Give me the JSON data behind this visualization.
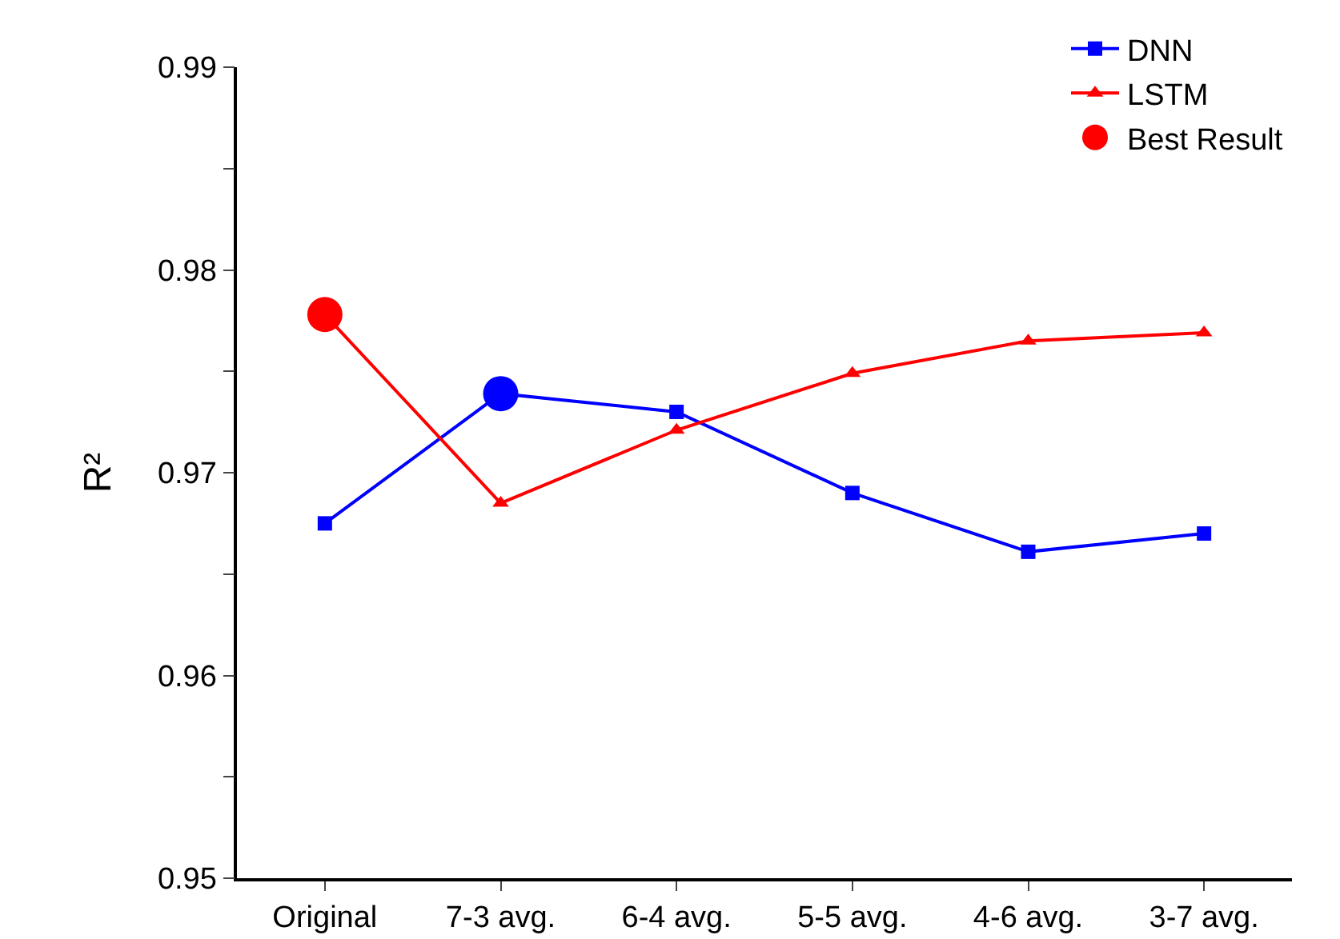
{
  "chart_data": {
    "type": "line",
    "ylabel": "R²",
    "categories": [
      "Original",
      "7-3 avg.",
      "6-4 avg.",
      "5-5 avg.",
      "4-6 avg.",
      "3-7 avg."
    ],
    "series": [
      {
        "name": "DNN",
        "color": "#0000ff",
        "marker": "square",
        "values": [
          0.9675,
          0.9739,
          0.973,
          0.969,
          0.9661,
          0.967
        ]
      },
      {
        "name": "LSTM",
        "color": "#ff0000",
        "marker": "triangle",
        "values": [
          0.9778,
          0.9685,
          0.9721,
          0.9749,
          0.9765,
          0.9769
        ]
      },
      {
        "name": "Best Result",
        "type": "scatter",
        "marker": "circle",
        "x": [
          "Original",
          "7-3 avg."
        ],
        "values": [
          0.9778,
          0.9739
        ],
        "colors": [
          "#ff0000",
          "#0000ff"
        ]
      }
    ],
    "ylim": [
      0.95,
      0.99
    ],
    "yticks": [
      0.95,
      {
        "value": 0.955,
        "label": null
      },
      0.96,
      {
        "value": 0.965,
        "label": null
      },
      0.97,
      {
        "value": 0.975,
        "label": null
      },
      0.98,
      {
        "value": 0.985,
        "label": null
      },
      0.99
    ],
    "grid": false,
    "legend": "top right",
    "line_style": "solid"
  }
}
